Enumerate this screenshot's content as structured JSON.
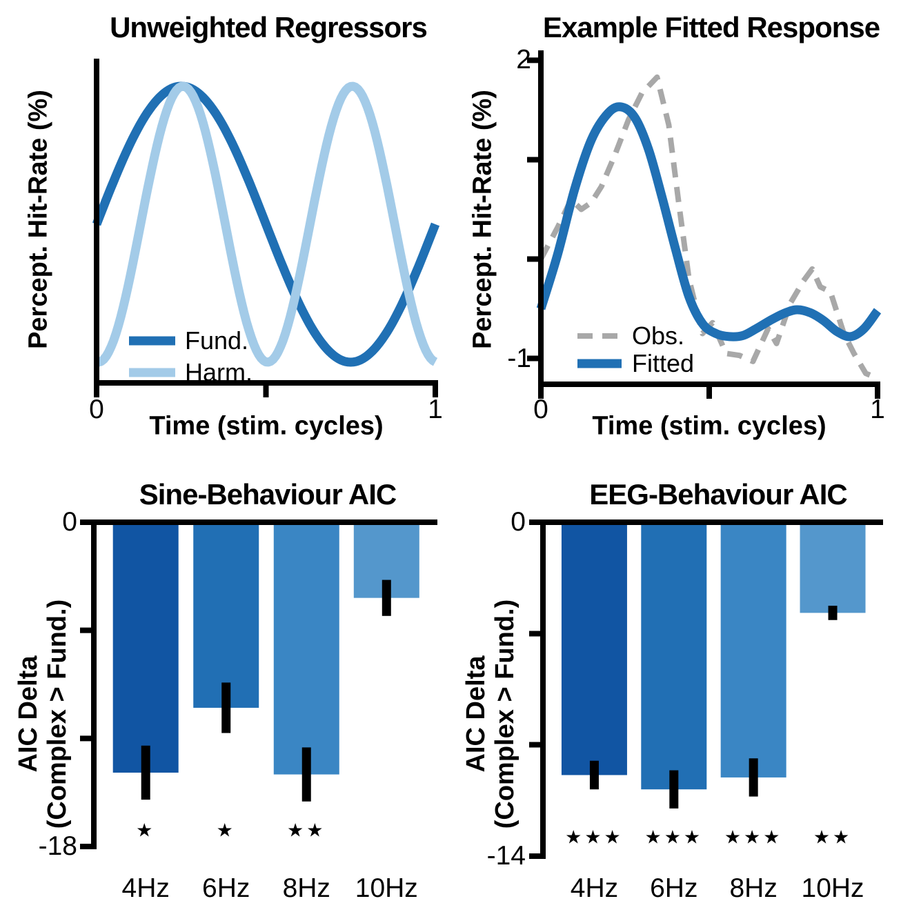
{
  "style": {
    "background": "#ffffff",
    "axis_color": "#000000",
    "error_bar_color": "#000000",
    "dark_blue": "#2070B4",
    "light_blue": "#A3CBE8",
    "obs_gray": "#A8A8A8"
  },
  "chart_data": [
    {
      "id": "unweighted-regressors",
      "type": "line",
      "title": "Unweighted Regressors",
      "x_axis": {
        "label": "Time (stim. cycles)",
        "range": [
          0,
          1
        ],
        "ticks": [
          0,
          0.5,
          1
        ],
        "tick_labels": [
          "0",
          "",
          "1"
        ]
      },
      "y_axis": {
        "label": "Percept. Hit-Rate (%)",
        "range": [
          -1.15,
          1.2
        ],
        "ticks": [],
        "tick_labels": []
      },
      "series": [
        {
          "name": "Fund.",
          "color": "#2070B4",
          "line_width": 13,
          "dash": null,
          "smooth": false,
          "function": {
            "kind": "sine",
            "cycles": 1,
            "amplitude": 1,
            "x_shift": 0
          },
          "description": "y = sin(2*pi*x), one cycle, peak at x=0.25, trough at x=0.75"
        },
        {
          "name": "Harm.",
          "color": "#A3CBE8",
          "line_width": 13,
          "dash": null,
          "smooth": false,
          "function": {
            "kind": "sine",
            "cycles": 2,
            "amplitude": 1,
            "x_shift": 0.13
          },
          "description": "y = sin(4*pi*(x-0.13)), two cycles, troughs at x=0, 0.5, 1, peaks at x=0.26, 0.76"
        }
      ],
      "legend": {
        "position": "lower-left",
        "entries": [
          {
            "label": "Fund."
          },
          {
            "label": "Harm."
          }
        ]
      }
    },
    {
      "id": "example-fitted-response",
      "type": "line",
      "title": "Example Fitted Response",
      "x_axis": {
        "label": "Time (stim. cycles)",
        "range": [
          0,
          1
        ],
        "ticks": [
          0,
          0.5,
          1
        ],
        "tick_labels": [
          "0",
          "",
          "1"
        ]
      },
      "y_axis": {
        "label": "Percept. Hit-Rate (%)",
        "range": [
          -1.26,
          2.1
        ],
        "ticks": [
          2,
          1,
          0,
          -1
        ],
        "tick_labels": [
          "2",
          "",
          "",
          "-1"
        ]
      },
      "series": [
        {
          "name": "Obs.",
          "color": "#A8A8A8",
          "line_width": 8,
          "dash": [
            22,
            14
          ],
          "smooth": false,
          "x": [
            0,
            0.05,
            0.09,
            0.12,
            0.15,
            0.18,
            0.22,
            0.26,
            0.3,
            0.345,
            0.38,
            0.41,
            0.44,
            0.48,
            0.51,
            0.55,
            0.59,
            0.63,
            0.675,
            0.7,
            0.74,
            0.78,
            0.806,
            0.83,
            0.86,
            0.9,
            0.93,
            0.965,
            1
          ],
          "y": [
            0,
            0.32,
            0.6,
            0.5,
            0.57,
            0.73,
            1.05,
            1.4,
            1.67,
            1.83,
            1.35,
            0.55,
            -0.2,
            -0.75,
            -0.64,
            -0.95,
            -0.97,
            -1.03,
            -0.7,
            -0.85,
            -0.45,
            -0.22,
            -0.1,
            -0.28,
            -0.33,
            -0.75,
            -0.95,
            -1.15,
            -1.2
          ]
        },
        {
          "name": "Fitted",
          "color": "#2070B4",
          "line_width": 13,
          "dash": null,
          "smooth": true,
          "x": [
            0,
            0.05,
            0.1,
            0.15,
            0.2,
            0.24,
            0.28,
            0.32,
            0.36,
            0.4,
            0.44,
            0.48,
            0.52,
            0.56,
            0.6,
            0.64,
            0.68,
            0.72,
            0.76,
            0.8,
            0.84,
            0.88,
            0.92,
            0.96,
            1
          ],
          "y": [
            -0.5,
            0.05,
            0.7,
            1.2,
            1.47,
            1.53,
            1.42,
            1.1,
            0.62,
            0.1,
            -0.38,
            -0.65,
            -0.75,
            -0.78,
            -0.77,
            -0.7,
            -0.62,
            -0.55,
            -0.51,
            -0.54,
            -0.62,
            -0.73,
            -0.78,
            -0.7,
            -0.52
          ]
        }
      ],
      "legend": {
        "position": "lower-left",
        "entries": [
          {
            "label": "Obs."
          },
          {
            "label": "Fitted"
          }
        ]
      }
    },
    {
      "id": "sine-behaviour-aic",
      "type": "bar",
      "title": "Sine-Behaviour AIC",
      "y_axis": {
        "label_line1": "AIC Delta",
        "label_line2": "(Complex > Fund.)",
        "range": [
          -18,
          0
        ],
        "ticks": [
          0,
          -6,
          -12,
          -18
        ],
        "tick_labels": [
          "0",
          "",
          "",
          "-18"
        ]
      },
      "categories": [
        "4Hz",
        "6Hz",
        "8Hz",
        "10Hz"
      ],
      "values": [
        -13.9,
        -10.3,
        -14.0,
        -4.2
      ],
      "error_bars": [
        1.5,
        1.4,
        1.5,
        1.0
      ],
      "significance": [
        "★",
        "★",
        "★★",
        ""
      ],
      "bar_colors": [
        "#1155A3",
        "#216FB4",
        "#3A86C4",
        "#5497CC"
      ]
    },
    {
      "id": "eeg-behaviour-aic",
      "type": "bar",
      "title": "EEG-Behaviour AIC",
      "y_axis": {
        "label_line1": "AIC Delta",
        "label_line2": "(Complex > Fund.)",
        "range": [
          -14,
          0
        ],
        "ticks": [
          0,
          -4.67,
          -9.33,
          -14
        ],
        "tick_labels": [
          "0",
          "",
          "",
          "-14"
        ]
      },
      "categories": [
        "4Hz",
        "6Hz",
        "8Hz",
        "10Hz"
      ],
      "values": [
        -10.6,
        -11.2,
        -10.7,
        -3.8
      ],
      "error_bars": [
        0.6,
        0.8,
        0.8,
        0.3
      ],
      "significance": [
        "★★★",
        "★★★",
        "★★★",
        "★★"
      ],
      "bar_colors": [
        "#1155A3",
        "#216FB4",
        "#3A86C4",
        "#5497CC"
      ]
    }
  ]
}
